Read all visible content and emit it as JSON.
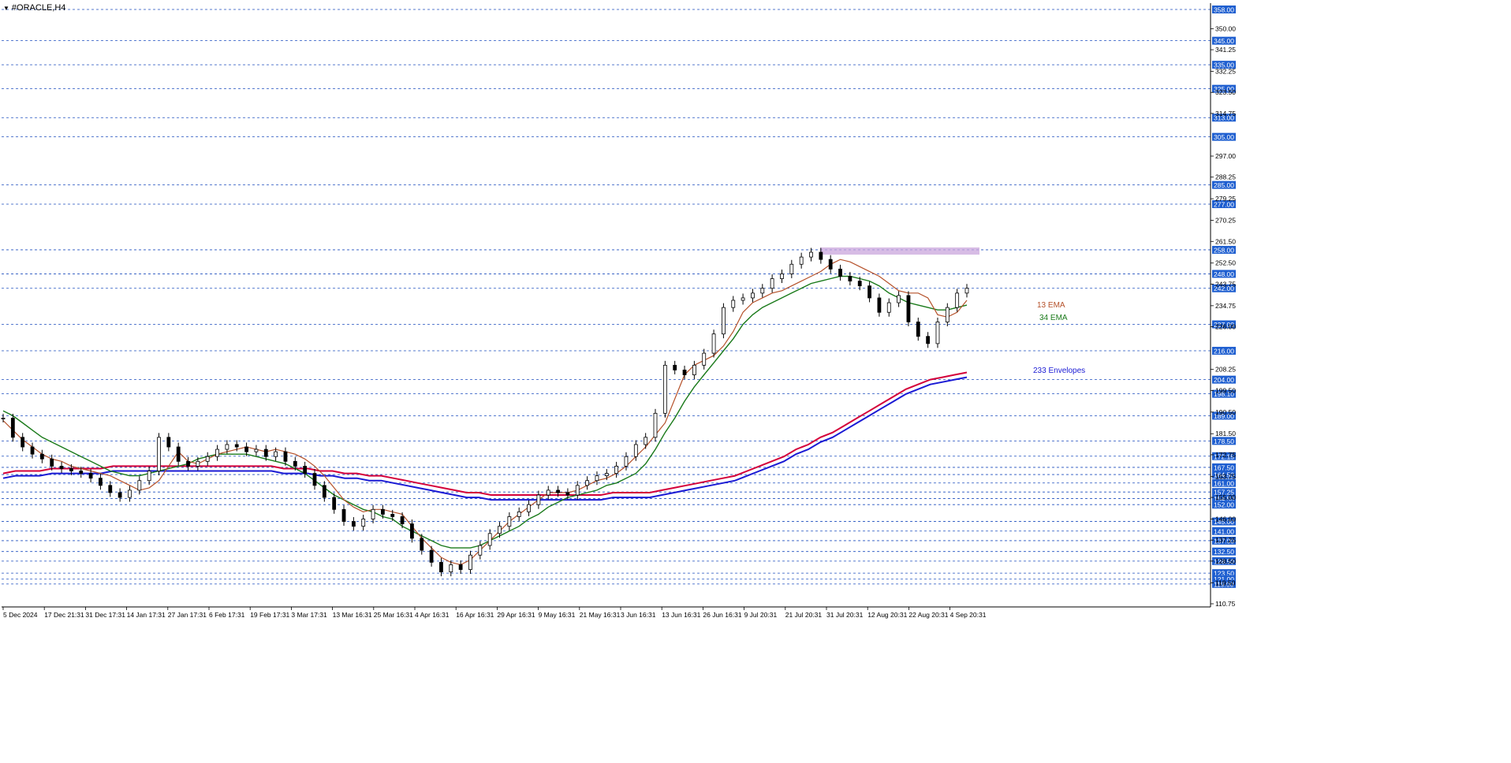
{
  "window": {
    "symbol_label": "#ORACLE,H4"
  },
  "colors": {
    "background": "#ffffff",
    "grid_line": "#1f4fbf",
    "price_label_bg": "#1f5fd0",
    "price_label_text": "#ffffff",
    "candle": "#000000",
    "ema13": "#b5512a",
    "ema34": "#1a7a1a",
    "env_upper": "#d4003a",
    "env_lower": "#1a1ad4",
    "resistance_zone": "#c9a6dc"
  },
  "chart_data": {
    "type": "candlestick",
    "ylim": [
      110.75,
      358.0
    ],
    "x_tick_labels": [
      "5 Dec 2024",
      "17 Dec 21:31",
      "31 Dec 17:31",
      "14 Jan 17:31",
      "27 Jan 17:31",
      "6 Feb 17:31",
      "19 Feb 17:31",
      "3 Mar 17:31",
      "13 Mar 16:31",
      "25 Mar 16:31",
      "4 Apr 16:31",
      "16 Apr 16:31",
      "29 Apr 16:31",
      "9 May 16:31",
      "21 May 16:31",
      "3 Jun 16:31",
      "13 Jun 16:31",
      "26 Jun 16:31",
      "9 Jul 20:31",
      "21 Jul 20:31",
      "31 Jul 20:31",
      "12 Aug 20:31",
      "22 Aug 20:31",
      "4 Sep 20:31"
    ],
    "y_tick_labels": [
      "350.00",
      "341.25",
      "332.25",
      "323.50",
      "314.75",
      "297.00",
      "288.25",
      "279.25",
      "270.25",
      "261.50",
      "252.50",
      "243.75",
      "234.75",
      "226.00",
      "208.25",
      "199.50",
      "190.50",
      "181.50",
      "172.75",
      "163.75",
      "155.00",
      "146.00",
      "137.25",
      "128.50",
      "119.50",
      "110.75"
    ],
    "level_lines": [
      "358.00",
      "345.00",
      "335.00",
      "325.00",
      "313.00",
      "305.00",
      "285.00",
      "277.00",
      "258.00",
      "248.00",
      "242.00",
      "227.00",
      "216.00",
      "204.00",
      "198.10",
      "189.00",
      "178.50",
      "172.15",
      "167.50",
      "164.50",
      "161.00",
      "157.25",
      "154.50",
      "152.00",
      "145.00",
      "141.00",
      "137.00",
      "132.50",
      "128.50",
      "123.50",
      "121.00",
      "119.00"
    ],
    "resistance_zone": {
      "low": 256.0,
      "high": 259.0,
      "x_from": "31 Jul 20:31",
      "x_to": "4 Sep 20:31"
    },
    "annotations": [
      "13 EMA",
      "34 EMA",
      "233 Envelopes"
    ],
    "series": [
      {
        "name": "13 EMA",
        "values": [
          187,
          183,
          179,
          176,
          173,
          171,
          170,
          168,
          167,
          166,
          165,
          164,
          162,
          160,
          158,
          159,
          162,
          168,
          174,
          170,
          169,
          171,
          173,
          174,
          175,
          176,
          175,
          174,
          175,
          174,
          173,
          171,
          168,
          164,
          159,
          154,
          151,
          149,
          150,
          150,
          149,
          148,
          143,
          138,
          134,
          130,
          128,
          127,
          129,
          133,
          137,
          141,
          145,
          148,
          151,
          154,
          157,
          157,
          157,
          158,
          160,
          162,
          163,
          165,
          168,
          172,
          176,
          181,
          186,
          196,
          206,
          210,
          212,
          214,
          218,
          224,
          232,
          236,
          238,
          240,
          241,
          243,
          245,
          247,
          249,
          252,
          254,
          253,
          251,
          249,
          247,
          244,
          241,
          240,
          240,
          238,
          231,
          230,
          232,
          237
        ]
      },
      {
        "name": "34 EMA",
        "values": [
          191,
          189,
          186,
          183,
          180,
          178,
          176,
          174,
          172,
          170,
          168,
          166,
          165,
          164,
          164,
          165,
          166,
          167,
          168,
          169,
          171,
          172,
          173,
          173,
          173,
          173,
          172,
          171,
          170,
          169,
          167,
          165,
          162,
          159,
          156,
          154,
          152,
          150,
          149,
          147,
          146,
          143,
          141,
          139,
          137,
          135,
          134,
          134,
          134,
          135,
          137,
          139,
          141,
          143,
          146,
          148,
          151,
          153,
          155,
          156,
          157,
          158,
          160,
          161,
          163,
          165,
          169,
          175,
          182,
          188,
          195,
          201,
          206,
          211,
          216,
          221,
          227,
          231,
          234,
          236,
          238,
          240,
          242,
          244,
          245,
          246,
          247,
          247,
          246,
          245,
          243,
          240,
          238,
          236,
          235,
          234,
          233,
          233,
          234,
          235
        ]
      },
      {
        "name": "233 Envelopes",
        "values": [
          165,
          166,
          166,
          166,
          167,
          167,
          167,
          167,
          167,
          168,
          168,
          168,
          168,
          168,
          168,
          168,
          168,
          168,
          168,
          168,
          168,
          168,
          168,
          167,
          167,
          167,
          166,
          166,
          165,
          165,
          164,
          164,
          163,
          162,
          161,
          160,
          159,
          158,
          157,
          157,
          156,
          156,
          156,
          156,
          156,
          156,
          156,
          156,
          156,
          156,
          157,
          157,
          157,
          157,
          158,
          159,
          160,
          161,
          162,
          163,
          164,
          166,
          168,
          170,
          172,
          175,
          177,
          180,
          182,
          185,
          188,
          191,
          194,
          197,
          200,
          202,
          204,
          205,
          206,
          207
        ]
      },
      {
        "name": "233 Envelopes",
        "values": [
          163,
          164,
          164,
          164,
          165,
          165,
          165,
          165,
          165,
          166,
          166,
          166,
          166,
          166,
          166,
          166,
          166,
          166,
          166,
          166,
          166,
          166,
          166,
          165,
          165,
          165,
          164,
          164,
          163,
          163,
          162,
          162,
          161,
          160,
          159,
          158,
          157,
          156,
          155,
          155,
          154,
          154,
          154,
          154,
          154,
          154,
          154,
          154,
          154,
          154,
          155,
          155,
          155,
          155,
          156,
          157,
          158,
          159,
          160,
          161,
          162,
          164,
          166,
          168,
          170,
          173,
          175,
          178,
          180,
          183,
          186,
          189,
          192,
          195,
          198,
          200,
          202,
          203,
          204,
          205
        ]
      }
    ],
    "ohlc_close": [
      188,
      180,
      176,
      173,
      171,
      168,
      167,
      166,
      165,
      163,
      160,
      157,
      155,
      158,
      162,
      166,
      180,
      176,
      170,
      168,
      170,
      172,
      175,
      177,
      176,
      174,
      175,
      172,
      174,
      170,
      168,
      165,
      160,
      155,
      150,
      145,
      143,
      146,
      150,
      148,
      147,
      144,
      138,
      133,
      128,
      124,
      127,
      125,
      131,
      135,
      140,
      143,
      147,
      149,
      152,
      156,
      158,
      157,
      156,
      160,
      162,
      164,
      165,
      168,
      172,
      177,
      180,
      190,
      210,
      208,
      206,
      210,
      215,
      223,
      234,
      237,
      238,
      240,
      242,
      246,
      248,
      252,
      255,
      257,
      254,
      250,
      247,
      245,
      243,
      238,
      232,
      236,
      239,
      228,
      222,
      219,
      228,
      234,
      240,
      242
    ]
  }
}
